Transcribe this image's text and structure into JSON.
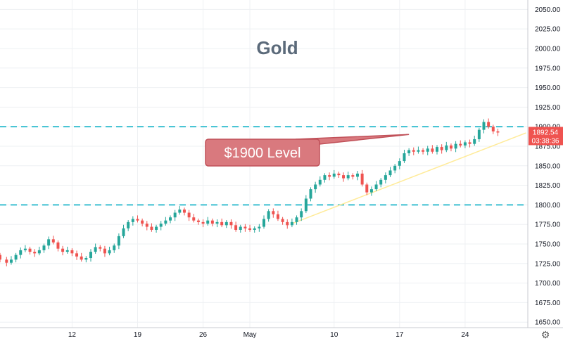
{
  "chart_data": {
    "type": "candlestick",
    "title": "Gold",
    "y_axis_ticks": [
      "1650.00",
      "1675.00",
      "1700.00",
      "1725.00",
      "1750.00",
      "1775.00",
      "1800.00",
      "1825.00",
      "1850.00",
      "1875.00",
      "1900.00",
      "1925.00",
      "1950.00",
      "1975.00",
      "2000.00",
      "2025.00",
      "2050.00"
    ],
    "ylim": [
      1643,
      2062
    ],
    "x_axis_ticks": [
      {
        "label": "12",
        "day": 12
      },
      {
        "label": "19",
        "day": 19
      },
      {
        "label": "26",
        "day": 26
      },
      {
        "label": "May",
        "day": 31
      },
      {
        "label": "10",
        "day": 40
      },
      {
        "label": "17",
        "day": 47
      },
      {
        "label": "24",
        "day": 54
      }
    ],
    "xlim": [
      4.3,
      60.7
    ],
    "x_units": "trading days from Apr 1, 2021 (date axis)",
    "price_series": [
      {
        "day": 4.3,
        "open": 1736,
        "close": 1730
      },
      {
        "day": 5,
        "open": 1730,
        "close": 1726
      },
      {
        "day": 5.5,
        "open": 1726,
        "close": 1730
      },
      {
        "day": 6,
        "open": 1730,
        "close": 1736
      },
      {
        "day": 6.5,
        "open": 1736,
        "close": 1742
      },
      {
        "day": 7,
        "open": 1742,
        "close": 1744
      },
      {
        "day": 7.5,
        "open": 1744,
        "close": 1740
      },
      {
        "day": 8,
        "open": 1740,
        "close": 1738
      },
      {
        "day": 8.5,
        "open": 1738,
        "close": 1742
      },
      {
        "day": 9,
        "open": 1742,
        "close": 1748
      },
      {
        "day": 9.5,
        "open": 1748,
        "close": 1756
      },
      {
        "day": 10,
        "open": 1756,
        "close": 1752
      },
      {
        "day": 10.5,
        "open": 1752,
        "close": 1744
      },
      {
        "day": 11,
        "open": 1744,
        "close": 1740
      },
      {
        "day": 11.5,
        "open": 1740,
        "close": 1742
      },
      {
        "day": 12,
        "open": 1742,
        "close": 1738
      },
      {
        "day": 12.5,
        "open": 1738,
        "close": 1734
      },
      {
        "day": 13,
        "open": 1734,
        "close": 1730
      },
      {
        "day": 13.5,
        "open": 1730,
        "close": 1732
      },
      {
        "day": 14,
        "open": 1732,
        "close": 1740
      },
      {
        "day": 14.5,
        "open": 1740,
        "close": 1746
      },
      {
        "day": 15,
        "open": 1746,
        "close": 1744
      },
      {
        "day": 15.5,
        "open": 1744,
        "close": 1738
      },
      {
        "day": 16,
        "open": 1738,
        "close": 1742
      },
      {
        "day": 16.5,
        "open": 1742,
        "close": 1748
      },
      {
        "day": 17,
        "open": 1748,
        "close": 1760
      },
      {
        "day": 17.5,
        "open": 1760,
        "close": 1770
      },
      {
        "day": 18,
        "open": 1770,
        "close": 1778
      },
      {
        "day": 18.5,
        "open": 1778,
        "close": 1782
      },
      {
        "day": 19,
        "open": 1782,
        "close": 1780
      },
      {
        "day": 19.5,
        "open": 1780,
        "close": 1776
      },
      {
        "day": 20,
        "open": 1776,
        "close": 1772
      },
      {
        "day": 20.5,
        "open": 1772,
        "close": 1768
      },
      {
        "day": 21,
        "open": 1768,
        "close": 1772
      },
      {
        "day": 21.5,
        "open": 1772,
        "close": 1776
      },
      {
        "day": 22,
        "open": 1776,
        "close": 1780
      },
      {
        "day": 22.5,
        "open": 1780,
        "close": 1784
      },
      {
        "day": 23,
        "open": 1784,
        "close": 1790
      },
      {
        "day": 23.5,
        "open": 1790,
        "close": 1794
      },
      {
        "day": 24,
        "open": 1794,
        "close": 1790
      },
      {
        "day": 24.5,
        "open": 1790,
        "close": 1784
      },
      {
        "day": 25,
        "open": 1784,
        "close": 1780
      },
      {
        "day": 25.5,
        "open": 1780,
        "close": 1778
      },
      {
        "day": 26,
        "open": 1778,
        "close": 1776
      },
      {
        "day": 26.5,
        "open": 1776,
        "close": 1780
      },
      {
        "day": 27,
        "open": 1780,
        "close": 1776
      },
      {
        "day": 27.5,
        "open": 1776,
        "close": 1778
      },
      {
        "day": 28,
        "open": 1778,
        "close": 1774
      },
      {
        "day": 28.5,
        "open": 1774,
        "close": 1778
      },
      {
        "day": 29,
        "open": 1778,
        "close": 1774
      },
      {
        "day": 29.5,
        "open": 1774,
        "close": 1768
      },
      {
        "day": 30,
        "open": 1768,
        "close": 1772
      },
      {
        "day": 30.5,
        "open": 1772,
        "close": 1770
      },
      {
        "day": 31,
        "open": 1770,
        "close": 1768
      },
      {
        "day": 31.5,
        "open": 1768,
        "close": 1770
      },
      {
        "day": 32,
        "open": 1770,
        "close": 1772
      },
      {
        "day": 32.5,
        "open": 1772,
        "close": 1782
      },
      {
        "day": 33,
        "open": 1782,
        "close": 1792
      },
      {
        "day": 33.5,
        "open": 1792,
        "close": 1788
      },
      {
        "day": 34,
        "open": 1788,
        "close": 1782
      },
      {
        "day": 34.5,
        "open": 1782,
        "close": 1778
      },
      {
        "day": 35,
        "open": 1778,
        "close": 1774
      },
      {
        "day": 35.5,
        "open": 1774,
        "close": 1778
      },
      {
        "day": 36,
        "open": 1778,
        "close": 1784
      },
      {
        "day": 36.5,
        "open": 1784,
        "close": 1792
      },
      {
        "day": 37,
        "open": 1792,
        "close": 1808
      },
      {
        "day": 37.5,
        "open": 1808,
        "close": 1820
      },
      {
        "day": 38,
        "open": 1820,
        "close": 1826
      },
      {
        "day": 38.5,
        "open": 1826,
        "close": 1832
      },
      {
        "day": 39,
        "open": 1832,
        "close": 1838
      },
      {
        "day": 39.5,
        "open": 1838,
        "close": 1836
      },
      {
        "day": 40,
        "open": 1836,
        "close": 1840
      },
      {
        "day": 40.5,
        "open": 1840,
        "close": 1838
      },
      {
        "day": 41,
        "open": 1838,
        "close": 1834
      },
      {
        "day": 41.5,
        "open": 1834,
        "close": 1838
      },
      {
        "day": 42,
        "open": 1838,
        "close": 1836
      },
      {
        "day": 42.5,
        "open": 1836,
        "close": 1840
      },
      {
        "day": 43,
        "open": 1840,
        "close": 1826
      },
      {
        "day": 43.5,
        "open": 1826,
        "close": 1816
      },
      {
        "day": 44,
        "open": 1816,
        "close": 1820
      },
      {
        "day": 44.5,
        "open": 1820,
        "close": 1826
      },
      {
        "day": 45,
        "open": 1826,
        "close": 1832
      },
      {
        "day": 45.5,
        "open": 1832,
        "close": 1838
      },
      {
        "day": 46,
        "open": 1838,
        "close": 1844
      },
      {
        "day": 46.5,
        "open": 1844,
        "close": 1850
      },
      {
        "day": 47,
        "open": 1850,
        "close": 1856
      },
      {
        "day": 47.5,
        "open": 1856,
        "close": 1866
      },
      {
        "day": 48,
        "open": 1866,
        "close": 1870
      },
      {
        "day": 48.5,
        "open": 1870,
        "close": 1868
      },
      {
        "day": 49,
        "open": 1868,
        "close": 1870
      },
      {
        "day": 49.5,
        "open": 1870,
        "close": 1868
      },
      {
        "day": 50,
        "open": 1868,
        "close": 1872
      },
      {
        "day": 50.5,
        "open": 1872,
        "close": 1868
      },
      {
        "day": 51,
        "open": 1868,
        "close": 1874
      },
      {
        "day": 51.5,
        "open": 1874,
        "close": 1870
      },
      {
        "day": 52,
        "open": 1870,
        "close": 1876
      },
      {
        "day": 52.5,
        "open": 1876,
        "close": 1872
      },
      {
        "day": 53,
        "open": 1872,
        "close": 1878
      },
      {
        "day": 53.5,
        "open": 1878,
        "close": 1876
      },
      {
        "day": 54,
        "open": 1876,
        "close": 1880
      },
      {
        "day": 54.5,
        "open": 1880,
        "close": 1878
      },
      {
        "day": 55,
        "open": 1878,
        "close": 1884
      },
      {
        "day": 55.5,
        "open": 1884,
        "close": 1896
      },
      {
        "day": 56,
        "open": 1896,
        "close": 1906
      },
      {
        "day": 56.5,
        "open": 1906,
        "close": 1900
      },
      {
        "day": 57,
        "open": 1900,
        "close": 1894
      },
      {
        "day": 57.5,
        "open": 1894,
        "close": 1892.54
      }
    ],
    "horizontal_levels": [
      1900,
      1800
    ],
    "trendline": {
      "start": {
        "day": 35.5,
        "value": 1776
      },
      "end": {
        "day": 60.5,
        "value": 1892
      }
    },
    "callout": {
      "text": "$1900 Level",
      "target": {
        "day": 48,
        "value": 1890
      }
    },
    "last_price": {
      "value": "1892.54",
      "countdown": "03:38:36"
    },
    "colors": {
      "up": "#26a69a",
      "down": "#ef5350",
      "level_line": "#3cc0d1",
      "trendline": "#ffeb99",
      "callout_fill": "#d9797e",
      "callout_border": "#c05058",
      "badge": "#ef5350",
      "grid": "#eef0f3"
    },
    "settings_icon": "gear-icon"
  }
}
